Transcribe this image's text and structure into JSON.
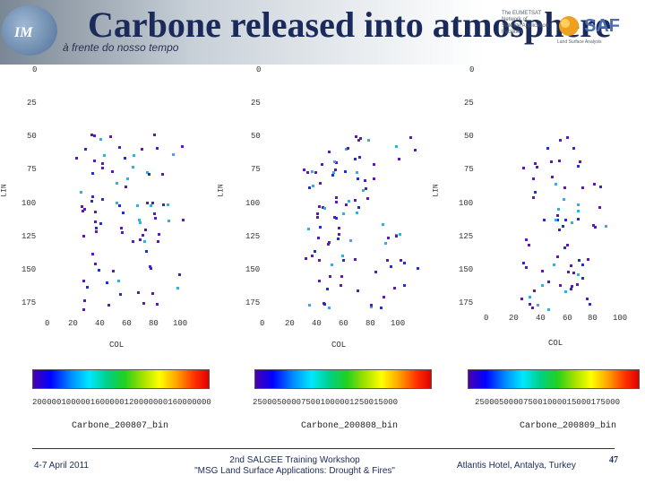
{
  "header": {
    "title": "Carbone released into atmosphere",
    "subtitle": "à frente do nosso tempo",
    "logo_left_text": "IM",
    "logo_right_small": "The EUMETSAT\nNetwork of\nSatellite Application\nFacilities",
    "logo_right_main": "SAF",
    "logo_right_sub": "Land Surface Analysis"
  },
  "panels": [
    {
      "yticks": [
        "0",
        "25",
        "50",
        "75",
        "100",
        "125",
        "150",
        "175"
      ],
      "xticks": [
        "0",
        "20",
        "40",
        "60",
        "80",
        "100"
      ],
      "ylabel": "LIN",
      "xlabel": "COL",
      "colorbar_labels": "2000001000001600000120000000160000000",
      "file": "Carbone_200807_bin"
    },
    {
      "yticks": [
        "0",
        "25",
        "50",
        "75",
        "100",
        "125",
        "150",
        "175"
      ],
      "xticks": [
        "0",
        "20",
        "40",
        "60",
        "80",
        "100"
      ],
      "ylabel": "LIN",
      "xlabel": "COL",
      "colorbar_labels": "250005000075001000001250015000",
      "file": "Carbone_200808_bin"
    },
    {
      "yticks": [
        "0",
        "25",
        "50",
        "75",
        "100",
        "125",
        "150",
        "175"
      ],
      "xticks": [
        "0",
        "20",
        "40",
        "60",
        "80",
        "100"
      ],
      "ylabel": "LIN",
      "xlabel": "COL",
      "colorbar_labels": "250005000075001000015000175000",
      "file": "Carbone_200809_bin"
    }
  ],
  "footer": {
    "date": "4-7 April 2011",
    "workshop_line1": "2nd SALGEE Training Workshop",
    "workshop_line2": "\"MSG Land Surface Applications: Drought & Fires\"",
    "venue": "Atlantis Hotel, Antalya, Turkey",
    "page": "47"
  },
  "colors": {
    "title": "#1a2a5a",
    "dot_primary": "#5a1ab8",
    "dot_blue": "#2030d0",
    "dot_cyan": "#30b0e0"
  }
}
